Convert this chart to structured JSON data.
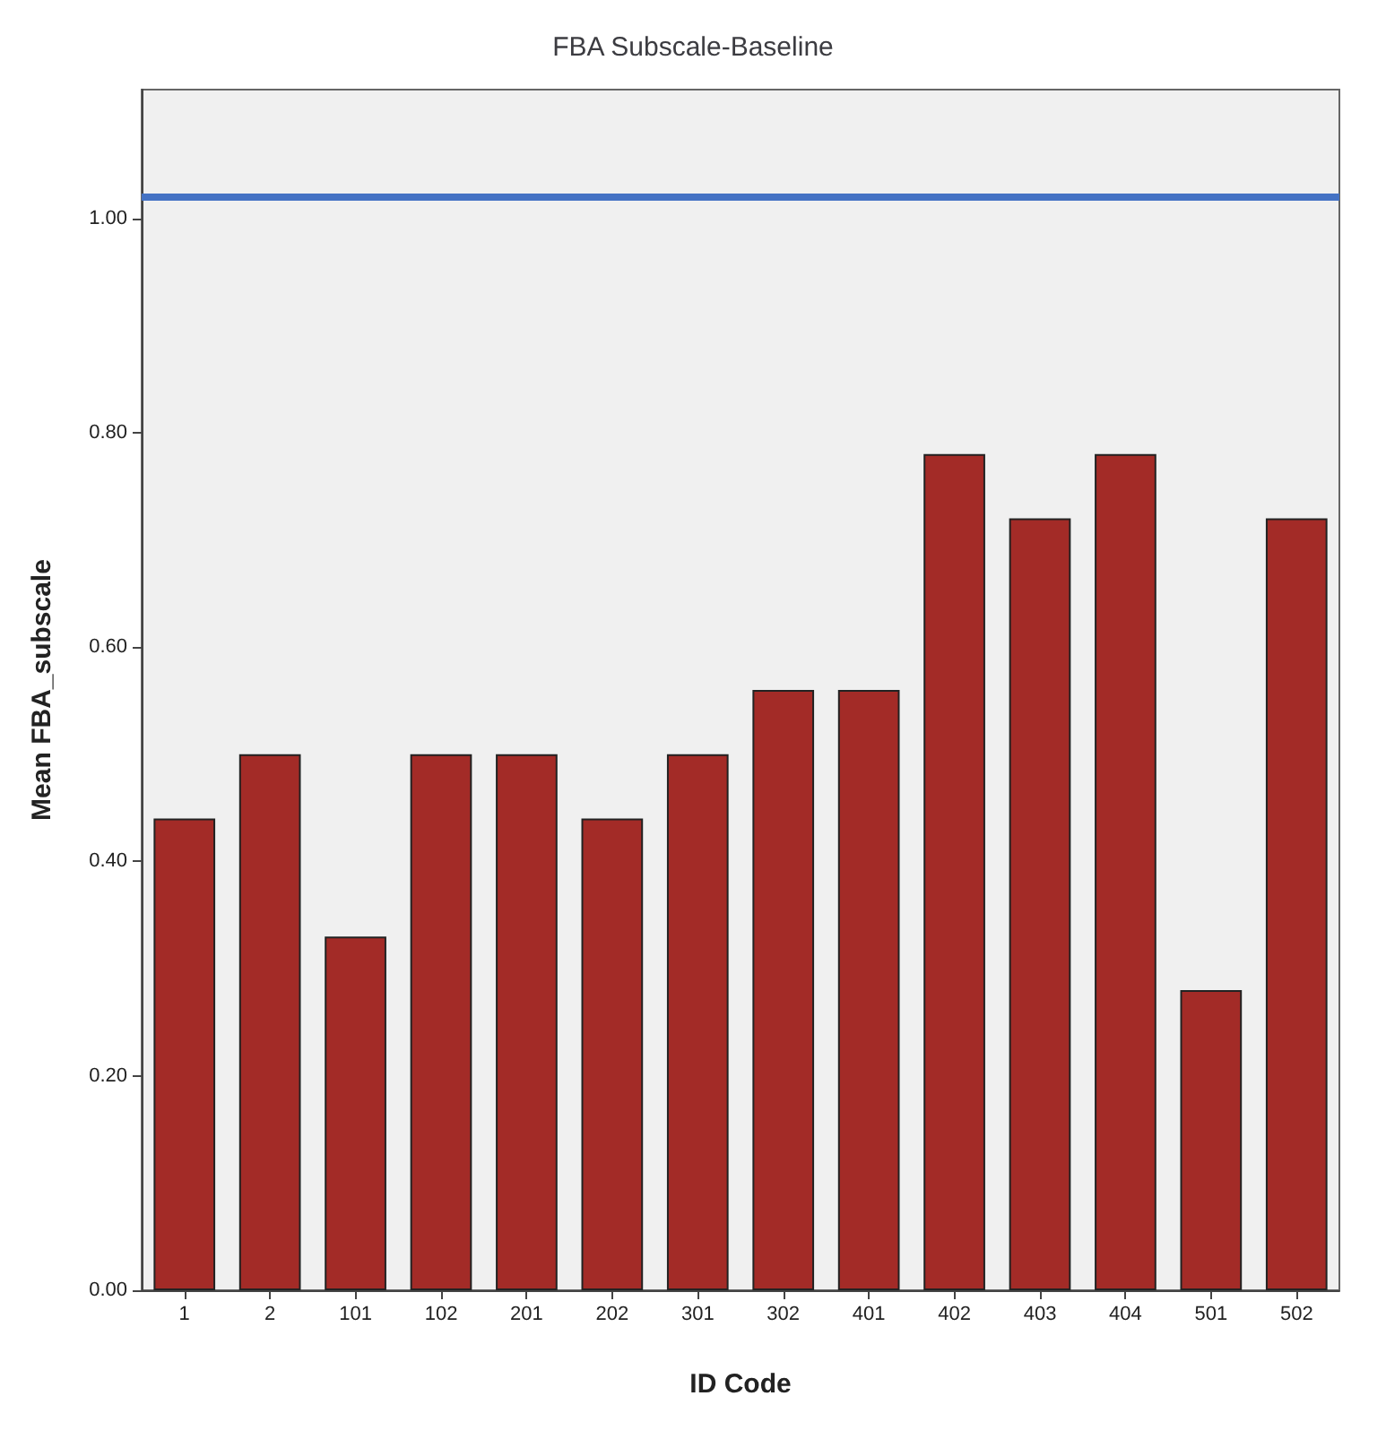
{
  "chart_data": {
    "type": "bar",
    "title": "FBA Subscale-Baseline",
    "xlabel": "ID Code",
    "ylabel": "Mean FBA_subscale",
    "categories": [
      "1",
      "2",
      "101",
      "102",
      "201",
      "202",
      "301",
      "302",
      "401",
      "402",
      "403",
      "404",
      "501",
      "502"
    ],
    "values": [
      0.44,
      0.5,
      0.33,
      0.5,
      0.5,
      0.44,
      0.5,
      0.56,
      0.56,
      0.78,
      0.72,
      0.78,
      0.28,
      0.72
    ],
    "color": "#a32b27",
    "ylim": [
      0,
      1.12
    ],
    "yticks": [
      {
        "value": 0,
        "label": "0.00"
      },
      {
        "value": 0.2,
        "label": "0.20"
      },
      {
        "value": 0.4,
        "label": "0.40"
      },
      {
        "value": 0.6,
        "label": "0.60"
      },
      {
        "value": 0.8,
        "label": "0.80"
      },
      {
        "value": 1,
        "label": "1.00"
      }
    ],
    "grid": false,
    "ref_lines": [
      {
        "axis": "y",
        "value": 1.02,
        "color": "#4472c4"
      }
    ]
  }
}
